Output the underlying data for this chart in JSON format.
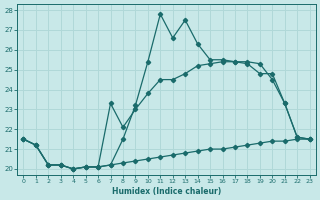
{
  "xlabel": "Humidex (Indice chaleur)",
  "xlim": [
    -0.5,
    23.5
  ],
  "ylim": [
    19.7,
    28.3
  ],
  "yticks": [
    20,
    21,
    22,
    23,
    24,
    25,
    26,
    27,
    28
  ],
  "xticks": [
    0,
    1,
    2,
    3,
    4,
    5,
    6,
    7,
    8,
    9,
    10,
    11,
    12,
    13,
    14,
    15,
    16,
    17,
    18,
    19,
    20,
    21,
    22,
    23
  ],
  "background_color": "#c8e8e8",
  "grid_color": "#b0d8d8",
  "line_color": "#1a6b6b",
  "line1_x": [
    0,
    1,
    2,
    3,
    4,
    5,
    6,
    7,
    8,
    9,
    10,
    11,
    12,
    13,
    14,
    15,
    16,
    17,
    18,
    19,
    20,
    21,
    22,
    23
  ],
  "line1_y": [
    21.5,
    21.2,
    20.2,
    20.2,
    20.0,
    20.1,
    20.1,
    20.2,
    21.5,
    23.2,
    25.4,
    27.8,
    26.6,
    27.5,
    26.3,
    25.5,
    25.5,
    25.4,
    25.3,
    24.8,
    24.8,
    23.3,
    21.6,
    21.5
  ],
  "line2_x": [
    0,
    1,
    2,
    3,
    4,
    5,
    6,
    7,
    8,
    9,
    10,
    11,
    12,
    13,
    14,
    15,
    16,
    17,
    18,
    19,
    20,
    21,
    22,
    23
  ],
  "line2_y": [
    21.5,
    21.2,
    20.2,
    20.2,
    20.0,
    20.1,
    20.1,
    23.3,
    22.1,
    23.0,
    23.8,
    24.5,
    24.5,
    24.8,
    25.2,
    25.3,
    25.4,
    25.4,
    25.4,
    25.3,
    24.5,
    23.3,
    21.6,
    21.5
  ],
  "line3_x": [
    0,
    1,
    2,
    3,
    4,
    5,
    6,
    7,
    8,
    9,
    10,
    11,
    12,
    13,
    14,
    15,
    16,
    17,
    18,
    19,
    20,
    21,
    22,
    23
  ],
  "line3_y": [
    21.5,
    21.2,
    20.2,
    20.2,
    20.0,
    20.1,
    20.1,
    20.2,
    20.3,
    20.4,
    20.5,
    20.6,
    20.7,
    20.8,
    20.9,
    21.0,
    21.0,
    21.1,
    21.2,
    21.3,
    21.4,
    21.4,
    21.5,
    21.5
  ]
}
